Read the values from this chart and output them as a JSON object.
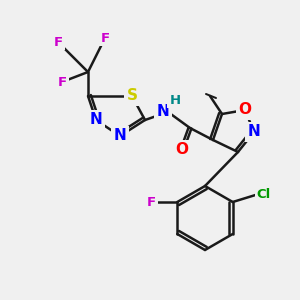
{
  "bg_color": "#f0f0f0",
  "bond_color": "#1a1a1a",
  "bond_width": 1.8,
  "atom_colors": {
    "N": "#0000ff",
    "O": "#ff0000",
    "S": "#cccc00",
    "F": "#cc00cc",
    "Cl": "#009900",
    "H": "#008888",
    "C": "#1a1a1a"
  },
  "fs_large": 11,
  "fs_small": 9.5
}
